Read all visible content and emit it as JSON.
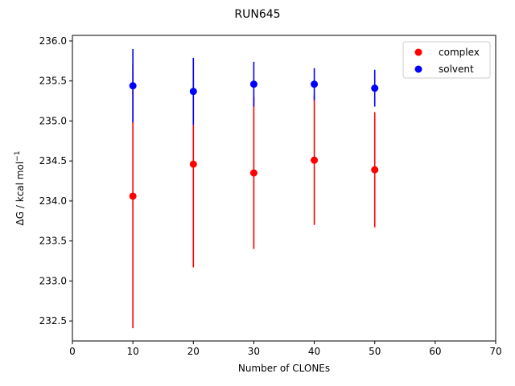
{
  "chart_data": {
    "type": "scatter",
    "title": "RUN645",
    "xlabel": "Number of CLONEs",
    "ylabel": "ΔG / kcal mol",
    "ylabel_superscript": "−1",
    "xlim": [
      0,
      70
    ],
    "ylim": [
      232.25,
      236.07
    ],
    "xticks": [
      0,
      10,
      20,
      30,
      40,
      50,
      60,
      70
    ],
    "xtick_labels": [
      "0",
      "10",
      "20",
      "30",
      "40",
      "50",
      "60",
      "70"
    ],
    "yticks": [
      232.5,
      233.0,
      233.5,
      234.0,
      234.5,
      235.0,
      235.5,
      236.0
    ],
    "ytick_labels": [
      "232.5",
      "233.0",
      "233.5",
      "234.0",
      "234.5",
      "235.0",
      "235.5",
      "236.0"
    ],
    "grid": false,
    "legend_position": "top-right",
    "series": [
      {
        "name": "complex",
        "color": "#ff0000",
        "x": [
          10,
          20,
          30,
          40,
          50
        ],
        "y": [
          234.06,
          234.46,
          234.35,
          234.51,
          234.39
        ],
        "err": [
          1.65,
          1.29,
          0.95,
          0.81,
          0.72
        ]
      },
      {
        "name": "solvent",
        "color": "#0000ff",
        "x": [
          10,
          20,
          30,
          40,
          50
        ],
        "y": [
          235.44,
          235.37,
          235.46,
          235.46,
          235.41
        ],
        "err": [
          0.46,
          0.42,
          0.28,
          0.2,
          0.23
        ]
      }
    ]
  }
}
